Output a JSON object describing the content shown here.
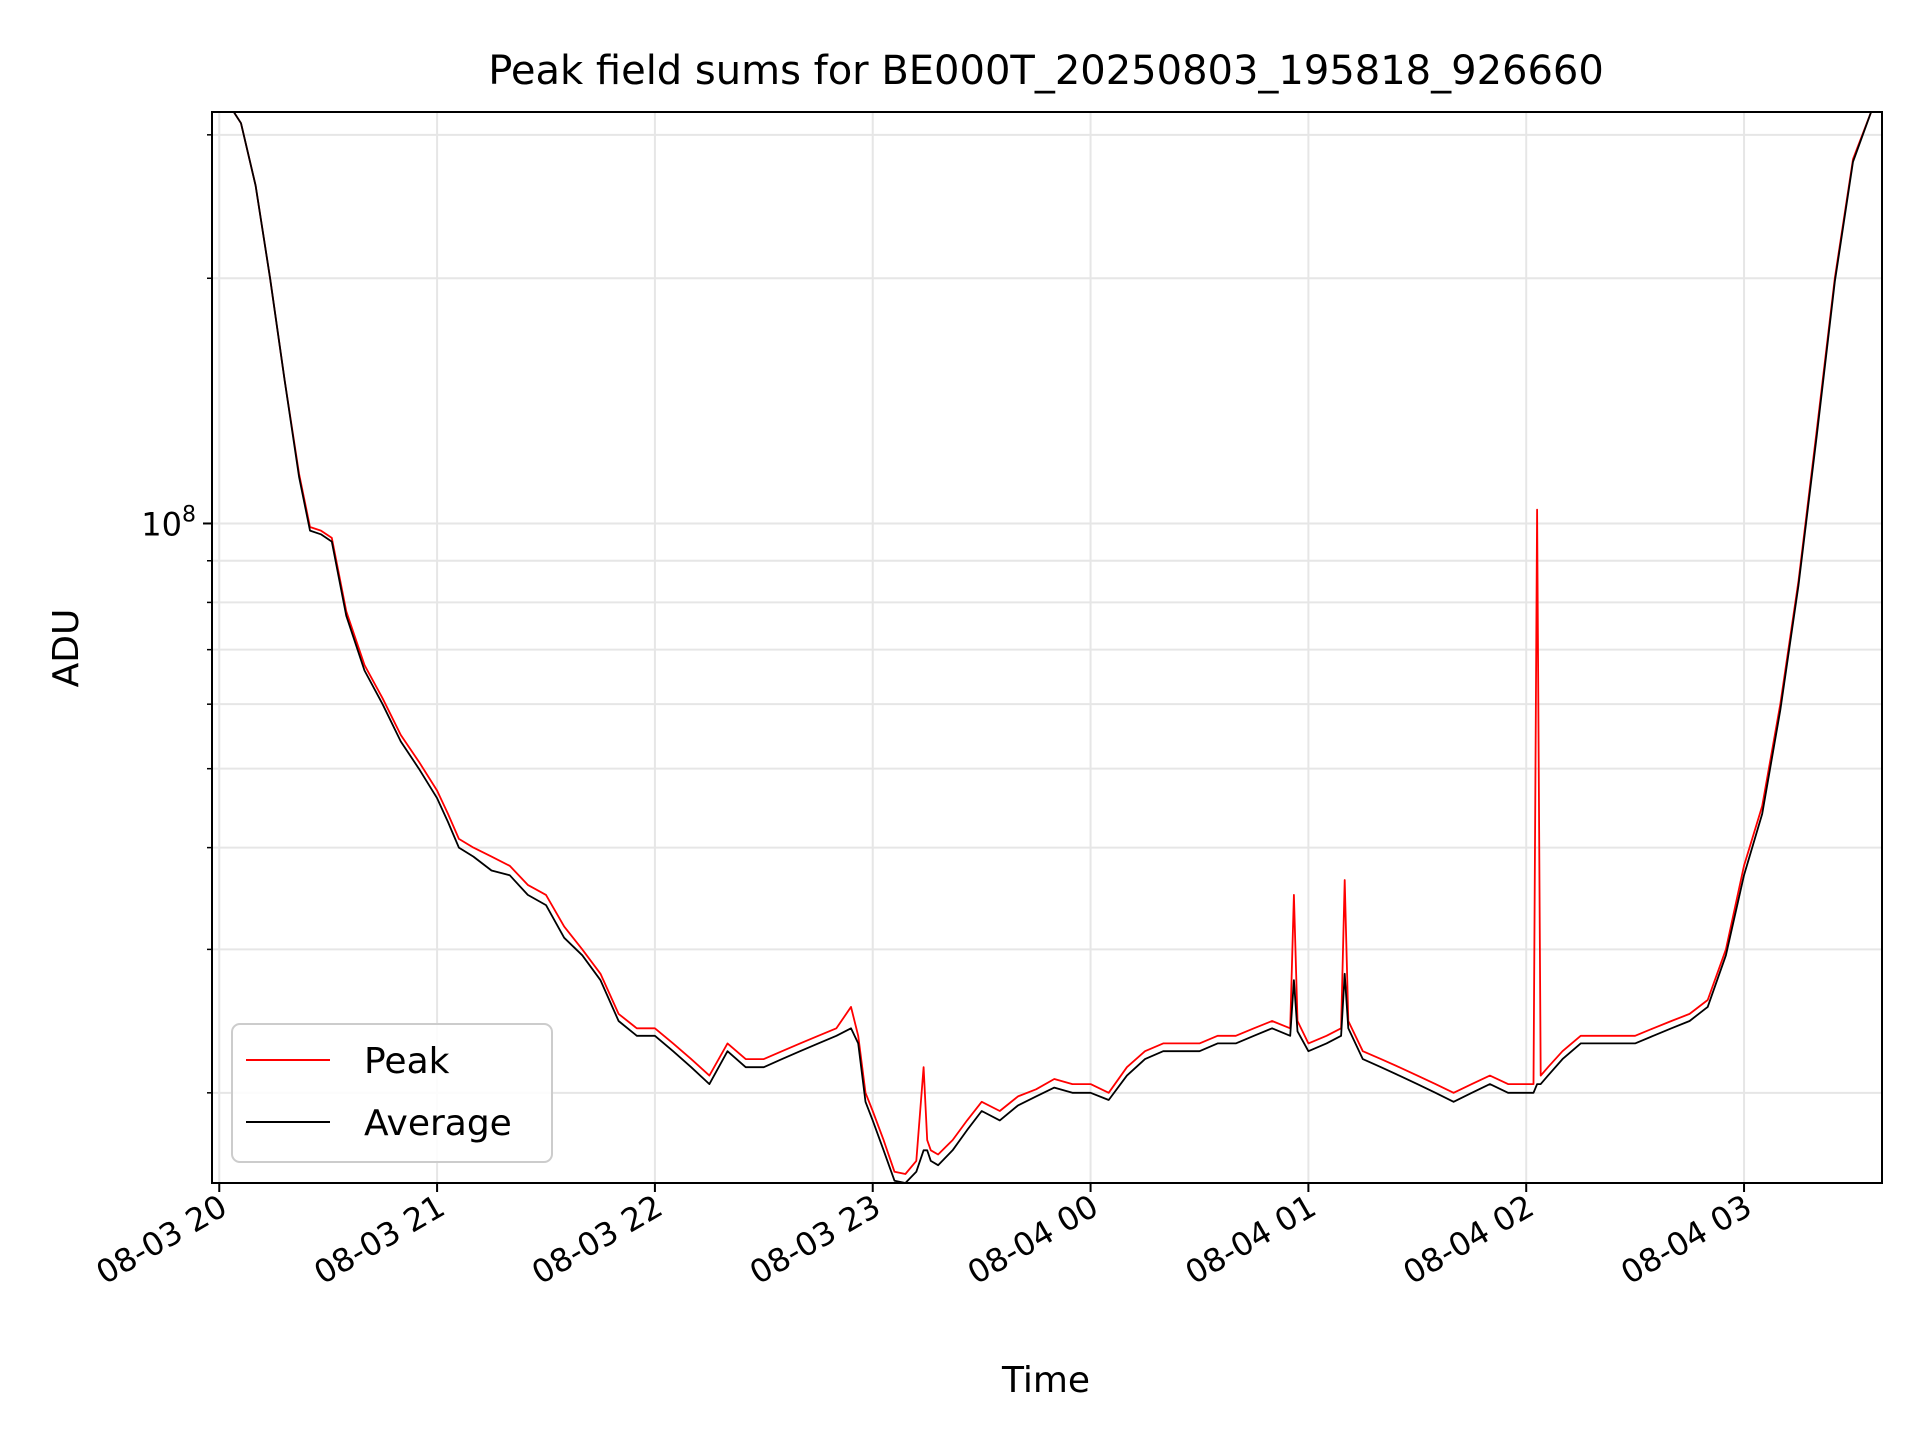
{
  "chart_data": {
    "type": "line",
    "title": "Peak field sums for BE000T_20250803_195818_926660",
    "xlabel": "Time",
    "ylabel": "ADU",
    "yscale": "log",
    "grid": true,
    "legend_position": "lower-left",
    "xlim": [
      "2025-08-03 19:58",
      "2025-08-04 03:38"
    ],
    "ylim": [
      15500000,
      320000000
    ],
    "x_ticks": [
      {
        "value": "2025-08-03 20:00",
        "label": "08-03 20"
      },
      {
        "value": "2025-08-03 21:00",
        "label": "08-03 21"
      },
      {
        "value": "2025-08-03 22:00",
        "label": "08-03 22"
      },
      {
        "value": "2025-08-03 23:00",
        "label": "08-03 23"
      },
      {
        "value": "2025-08-04 00:00",
        "label": "08-04 00"
      },
      {
        "value": "2025-08-04 01:00",
        "label": "08-04 01"
      },
      {
        "value": "2025-08-04 02:00",
        "label": "08-04 02"
      },
      {
        "value": "2025-08-04 03:00",
        "label": "08-04 03"
      }
    ],
    "y_major_ticks": [
      {
        "value": 100000000,
        "label_base": "10",
        "label_exp": "8"
      }
    ],
    "y_minor_ticks": [
      20000000,
      30000000,
      40000000,
      50000000,
      60000000,
      70000000,
      80000000,
      90000000,
      200000000,
      300000000
    ],
    "series": [
      {
        "name": "Peak",
        "color": "#ff0000",
        "x": [
          "2025-08-03 19:58",
          "2025-08-03 20:04",
          "2025-08-03 20:06",
          "2025-08-03 20:10",
          "2025-08-03 20:14",
          "2025-08-03 20:18",
          "2025-08-03 20:22",
          "2025-08-03 20:25",
          "2025-08-03 20:28",
          "2025-08-03 20:31",
          "2025-08-03 20:35",
          "2025-08-03 20:40",
          "2025-08-03 20:45",
          "2025-08-03 20:50",
          "2025-08-03 20:55",
          "2025-08-03 21:00",
          "2025-08-03 21:03",
          "2025-08-03 21:06",
          "2025-08-03 21:10",
          "2025-08-03 21:15",
          "2025-08-03 21:20",
          "2025-08-03 21:25",
          "2025-08-03 21:30",
          "2025-08-03 21:35",
          "2025-08-03 21:40",
          "2025-08-03 21:45",
          "2025-08-03 21:50",
          "2025-08-03 21:55",
          "2025-08-03 22:00",
          "2025-08-03 22:05",
          "2025-08-03 22:10",
          "2025-08-03 22:15",
          "2025-08-03 22:20",
          "2025-08-03 22:25",
          "2025-08-03 22:30",
          "2025-08-03 22:35",
          "2025-08-03 22:40",
          "2025-08-03 22:45",
          "2025-08-03 22:50",
          "2025-08-03 22:54",
          "2025-08-03 22:56",
          "2025-08-03 22:58",
          "2025-08-03 23:00",
          "2025-08-03 23:03",
          "2025-08-03 23:06",
          "2025-08-03 23:09",
          "2025-08-03 23:12",
          "2025-08-03 23:14",
          "2025-08-03 23:15",
          "2025-08-03 23:16",
          "2025-08-03 23:18",
          "2025-08-03 23:22",
          "2025-08-03 23:26",
          "2025-08-03 23:30",
          "2025-08-03 23:35",
          "2025-08-03 23:40",
          "2025-08-03 23:45",
          "2025-08-03 23:50",
          "2025-08-03 23:55",
          "2025-08-04 00:00",
          "2025-08-04 00:05",
          "2025-08-04 00:10",
          "2025-08-04 00:15",
          "2025-08-04 00:20",
          "2025-08-04 00:25",
          "2025-08-04 00:30",
          "2025-08-04 00:35",
          "2025-08-04 00:40",
          "2025-08-04 00:45",
          "2025-08-04 00:50",
          "2025-08-04 00:55",
          "2025-08-04 00:56",
          "2025-08-04 00:57",
          "2025-08-04 01:00",
          "2025-08-04 01:05",
          "2025-08-04 01:09",
          "2025-08-04 01:10",
          "2025-08-04 01:11",
          "2025-08-04 01:15",
          "2025-08-04 01:20",
          "2025-08-04 01:25",
          "2025-08-04 01:30",
          "2025-08-04 01:35",
          "2025-08-04 01:40",
          "2025-08-04 01:45",
          "2025-08-04 01:50",
          "2025-08-04 01:55",
          "2025-08-04 02:00",
          "2025-08-04 02:02",
          "2025-08-04 02:03",
          "2025-08-04 02:04",
          "2025-08-04 02:06",
          "2025-08-04 02:10",
          "2025-08-04 02:15",
          "2025-08-04 02:20",
          "2025-08-04 02:25",
          "2025-08-04 02:30",
          "2025-08-04 02:35",
          "2025-08-04 02:40",
          "2025-08-04 02:45",
          "2025-08-04 02:50",
          "2025-08-04 02:55",
          "2025-08-04 03:00",
          "2025-08-04 03:05",
          "2025-08-04 03:10",
          "2025-08-04 03:15",
          "2025-08-04 03:20",
          "2025-08-04 03:25",
          "2025-08-04 03:30",
          "2025-08-04 03:35",
          "2025-08-04 03:38"
        ],
        "values": [
          320000000,
          320000000,
          310000000,
          260000000,
          200000000,
          150000000,
          115000000,
          99000000,
          98000000,
          96000000,
          78000000,
          67000000,
          61000000,
          55000000,
          51000000,
          47000000,
          44000000,
          41000000,
          40000000,
          39000000,
          38000000,
          36000000,
          35000000,
          32000000,
          30000000,
          28000000,
          25000000,
          24000000,
          24000000,
          23000000,
          22000000,
          21000000,
          23000000,
          22000000,
          22000000,
          22500000,
          23000000,
          23500000,
          24000000,
          25500000,
          23500000,
          20000000,
          19000000,
          17500000,
          16000000,
          15900000,
          16500000,
          21500000,
          17500000,
          17000000,
          16800000,
          17500000,
          18500000,
          19500000,
          19000000,
          19800000,
          20200000,
          20800000,
          20500000,
          20500000,
          20000000,
          21500000,
          22500000,
          23000000,
          23000000,
          23000000,
          23500000,
          23500000,
          24000000,
          24500000,
          24000000,
          35000000,
          24500000,
          23000000,
          23500000,
          24000000,
          36500000,
          24500000,
          22500000,
          22000000,
          21500000,
          21000000,
          20500000,
          20000000,
          20500000,
          21000000,
          20500000,
          20500000,
          20500000,
          104000000,
          21000000,
          21500000,
          22500000,
          23500000,
          23500000,
          23500000,
          23500000,
          24000000,
          24500000,
          25000000,
          26000000,
          30000000,
          38000000,
          45000000,
          60000000,
          85000000,
          130000000,
          200000000,
          280000000,
          320000000,
          320000000
        ]
      },
      {
        "name": "Average",
        "color": "#000000",
        "x": [
          "2025-08-03 19:58",
          "2025-08-03 20:04",
          "2025-08-03 20:06",
          "2025-08-03 20:10",
          "2025-08-03 20:14",
          "2025-08-03 20:18",
          "2025-08-03 20:22",
          "2025-08-03 20:25",
          "2025-08-03 20:28",
          "2025-08-03 20:31",
          "2025-08-03 20:35",
          "2025-08-03 20:40",
          "2025-08-03 20:45",
          "2025-08-03 20:50",
          "2025-08-03 20:55",
          "2025-08-03 21:00",
          "2025-08-03 21:03",
          "2025-08-03 21:06",
          "2025-08-03 21:10",
          "2025-08-03 21:15",
          "2025-08-03 21:20",
          "2025-08-03 21:25",
          "2025-08-03 21:30",
          "2025-08-03 21:35",
          "2025-08-03 21:40",
          "2025-08-03 21:45",
          "2025-08-03 21:50",
          "2025-08-03 21:55",
          "2025-08-03 22:00",
          "2025-08-03 22:05",
          "2025-08-03 22:10",
          "2025-08-03 22:15",
          "2025-08-03 22:20",
          "2025-08-03 22:25",
          "2025-08-03 22:30",
          "2025-08-03 22:35",
          "2025-08-03 22:40",
          "2025-08-03 22:45",
          "2025-08-03 22:50",
          "2025-08-03 22:54",
          "2025-08-03 22:56",
          "2025-08-03 22:58",
          "2025-08-03 23:00",
          "2025-08-03 23:03",
          "2025-08-03 23:06",
          "2025-08-03 23:09",
          "2025-08-03 23:12",
          "2025-08-03 23:14",
          "2025-08-03 23:15",
          "2025-08-03 23:16",
          "2025-08-03 23:18",
          "2025-08-03 23:22",
          "2025-08-03 23:26",
          "2025-08-03 23:30",
          "2025-08-03 23:35",
          "2025-08-03 23:40",
          "2025-08-03 23:45",
          "2025-08-03 23:50",
          "2025-08-03 23:55",
          "2025-08-04 00:00",
          "2025-08-04 00:05",
          "2025-08-04 00:10",
          "2025-08-04 00:15",
          "2025-08-04 00:20",
          "2025-08-04 00:25",
          "2025-08-04 00:30",
          "2025-08-04 00:35",
          "2025-08-04 00:40",
          "2025-08-04 00:45",
          "2025-08-04 00:50",
          "2025-08-04 00:55",
          "2025-08-04 00:56",
          "2025-08-04 00:57",
          "2025-08-04 01:00",
          "2025-08-04 01:05",
          "2025-08-04 01:09",
          "2025-08-04 01:10",
          "2025-08-04 01:11",
          "2025-08-04 01:15",
          "2025-08-04 01:20",
          "2025-08-04 01:25",
          "2025-08-04 01:30",
          "2025-08-04 01:35",
          "2025-08-04 01:40",
          "2025-08-04 01:45",
          "2025-08-04 01:50",
          "2025-08-04 01:55",
          "2025-08-04 02:00",
          "2025-08-04 02:02",
          "2025-08-04 02:03",
          "2025-08-04 02:04",
          "2025-08-04 02:06",
          "2025-08-04 02:10",
          "2025-08-04 02:15",
          "2025-08-04 02:20",
          "2025-08-04 02:25",
          "2025-08-04 02:30",
          "2025-08-04 02:35",
          "2025-08-04 02:40",
          "2025-08-04 02:45",
          "2025-08-04 02:50",
          "2025-08-04 02:55",
          "2025-08-04 03:00",
          "2025-08-04 03:05",
          "2025-08-04 03:10",
          "2025-08-04 03:15",
          "2025-08-04 03:20",
          "2025-08-04 03:25",
          "2025-08-04 03:30",
          "2025-08-04 03:35",
          "2025-08-04 03:38"
        ],
        "values": [
          320000000,
          320000000,
          310000000,
          260000000,
          200000000,
          150000000,
          114000000,
          98000000,
          97000000,
          95000000,
          77000000,
          66000000,
          60000000,
          54000000,
          50000000,
          46000000,
          43000000,
          40000000,
          39000000,
          37500000,
          37000000,
          35000000,
          34000000,
          31000000,
          29500000,
          27500000,
          24500000,
          23500000,
          23500000,
          22500000,
          21500000,
          20500000,
          22500000,
          21500000,
          21500000,
          22000000,
          22500000,
          23000000,
          23500000,
          24000000,
          23000000,
          19500000,
          18500000,
          17000000,
          15600000,
          15500000,
          16000000,
          17000000,
          17000000,
          16500000,
          16300000,
          17000000,
          18000000,
          19000000,
          18500000,
          19300000,
          19800000,
          20300000,
          20000000,
          20000000,
          19600000,
          21000000,
          22000000,
          22500000,
          22500000,
          22500000,
          23000000,
          23000000,
          23500000,
          24000000,
          23500000,
          27500000,
          23800000,
          22500000,
          23000000,
          23500000,
          28000000,
          24000000,
          22000000,
          21500000,
          21000000,
          20500000,
          20000000,
          19500000,
          20000000,
          20500000,
          20000000,
          20000000,
          20000000,
          20500000,
          20500000,
          21000000,
          22000000,
          23000000,
          23000000,
          23000000,
          23000000,
          23500000,
          24000000,
          24500000,
          25500000,
          29500000,
          37000000,
          44000000,
          59000000,
          84000000,
          128000000,
          198000000,
          278000000,
          320000000,
          320000000
        ]
      }
    ]
  }
}
